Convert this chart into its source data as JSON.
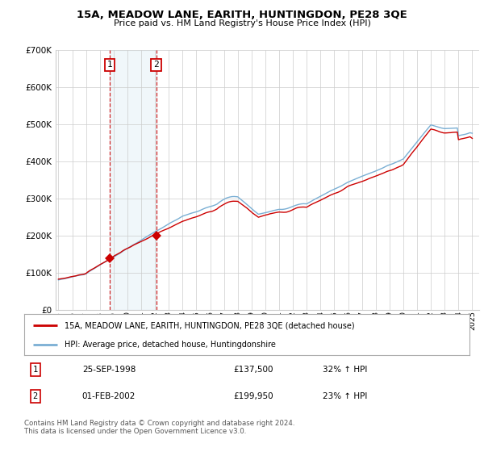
{
  "title": "15A, MEADOW LANE, EARITH, HUNTINGDON, PE28 3QE",
  "subtitle": "Price paid vs. HM Land Registry's House Price Index (HPI)",
  "property_color": "#cc0000",
  "hpi_color": "#7aafd4",
  "background_color": "#ffffff",
  "grid_color": "#cccccc",
  "purchase1_year": 1998.729,
  "purchase1_price": 137500,
  "purchase2_year": 2002.083,
  "purchase2_price": 199950,
  "legend_property": "15A, MEADOW LANE, EARITH, HUNTINGDON, PE28 3QE (detached house)",
  "legend_hpi": "HPI: Average price, detached house, Huntingdonshire",
  "table_row1": [
    "1",
    "25-SEP-1998",
    "£137,500",
    "32% ↑ HPI"
  ],
  "table_row2": [
    "2",
    "01-FEB-2002",
    "£199,950",
    "23% ↑ HPI"
  ],
  "footer": "Contains HM Land Registry data © Crown copyright and database right 2024.\nThis data is licensed under the Open Government Licence v3.0.",
  "ylim": [
    0,
    700000
  ],
  "yticks": [
    0,
    100000,
    200000,
    300000,
    400000,
    500000,
    600000,
    700000
  ],
  "ytick_labels": [
    "£0",
    "£100K",
    "£200K",
    "£300K",
    "£400K",
    "£500K",
    "£600K",
    "£700K"
  ],
  "xlim_start": 1994.8,
  "xlim_end": 2025.5,
  "xticks": [
    1995,
    1996,
    1997,
    1998,
    1999,
    2000,
    2001,
    2002,
    2003,
    2004,
    2005,
    2006,
    2007,
    2008,
    2009,
    2010,
    2011,
    2012,
    2013,
    2014,
    2015,
    2016,
    2017,
    2018,
    2019,
    2020,
    2021,
    2022,
    2023,
    2024,
    2025
  ]
}
